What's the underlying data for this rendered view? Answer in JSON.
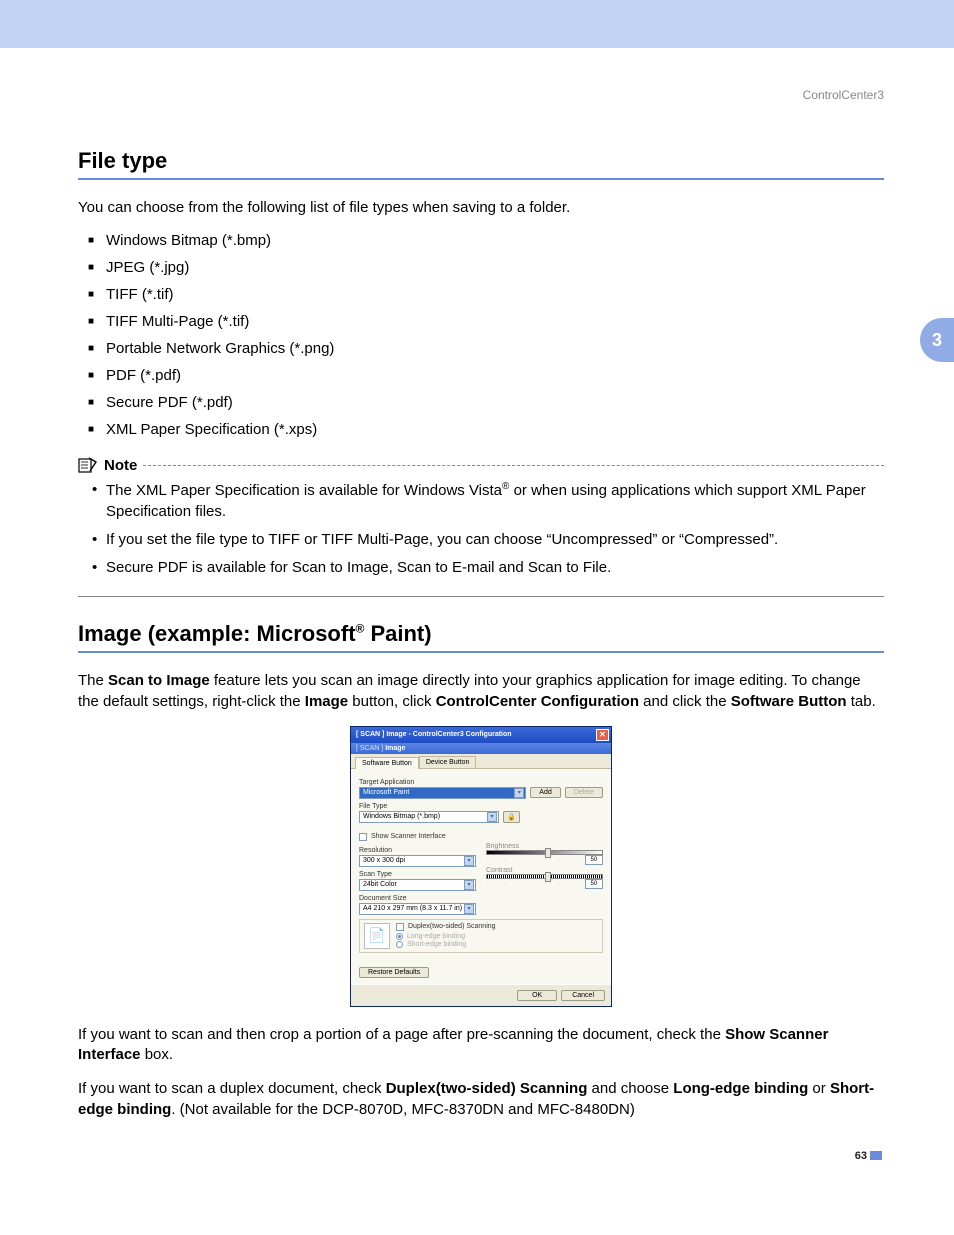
{
  "header": {
    "label": "ControlCenter3"
  },
  "side_tab": {
    "number": "3"
  },
  "section1": {
    "title": "File type",
    "intro": "You can choose from the following list of file types when saving to a folder.",
    "items": [
      "Windows Bitmap (*.bmp)",
      "JPEG (*.jpg)",
      "TIFF (*.tif)",
      "TIFF Multi-Page (*.tif)",
      "Portable Network Graphics (*.png)",
      "PDF (*.pdf)",
      "Secure PDF (*.pdf)",
      "XML Paper Specification (*.xps)"
    ]
  },
  "note": {
    "label": "Note",
    "items_html": [
      "The XML Paper Specification is available for Windows Vista<sup class=\"reg\">®</sup> or when using applications which support XML Paper Specification files.",
      "If you set the file type to TIFF or TIFF Multi-Page, you can choose “Uncompressed” or “Compressed”.",
      "Secure PDF is available for Scan to Image, Scan to E-mail and Scan to File."
    ]
  },
  "section2": {
    "title_html": "Image (example: Microsoft<sup class=\"reg\">®</sup> Paint)",
    "para1_html": "The <b>Scan to Image</b> feature lets you scan an image directly into your graphics application for image editing. To change the default settings, right-click the <b>Image</b> button, click <b>ControlCenter Configuration</b> and click the <b>Software Button</b> tab.",
    "para2_html": "If you want to scan and then crop a portion of a page after pre-scanning the document, check the <b>Show Scanner Interface</b> box.",
    "para3_html": "If you want to scan a duplex document, check <b>Duplex(two-sided) Scanning</b> and choose <b>Long-edge binding</b> or <b>Short-edge binding</b>. (Not available for the DCP-8070D, MFC-8370DN and MFC-8480DN)"
  },
  "dialog": {
    "title": "[ SCAN ]  Image - ControlCenter3 Configuration",
    "subbar_prefix": "[ SCAN ] ",
    "subbar_name": "Image",
    "tabs": {
      "software": "Software Button",
      "device": "Device Button"
    },
    "target_app_label": "Target Application",
    "target_app_value": "Microsoft Paint",
    "add_btn": "Add",
    "delete_btn": "Delete",
    "file_type_label": "File Type",
    "file_type_value": "Windows Bitmap (*.bmp)",
    "show_scanner": "Show Scanner Interface",
    "resolution_label": "Resolution",
    "resolution_value": "300 x 300 dpi",
    "scan_type_label": "Scan Type",
    "scan_type_value": "24bit Color",
    "doc_size_label": "Document Size",
    "doc_size_value": "A4 210 x 297 mm (8.3 x 11.7 in)",
    "brightness_label": "Brightness",
    "contrast_label": "Contrast",
    "slider_value": "50",
    "duplex_label": "Duplex(two-sided) Scanning",
    "long_edge": "Long-edge binding",
    "short_edge": "Short-edge binding",
    "restore": "Restore Defaults",
    "ok": "OK",
    "cancel": "Cancel"
  },
  "page_number": "63",
  "colors": {
    "top_bar": "#c3d3f4",
    "accent": "#6a8bd8",
    "side_tab": "#91abe4",
    "dialog_title_from": "#3b6ad8",
    "dialog_title_to": "#1e4bc4",
    "dialog_bg": "#ece9d8"
  }
}
